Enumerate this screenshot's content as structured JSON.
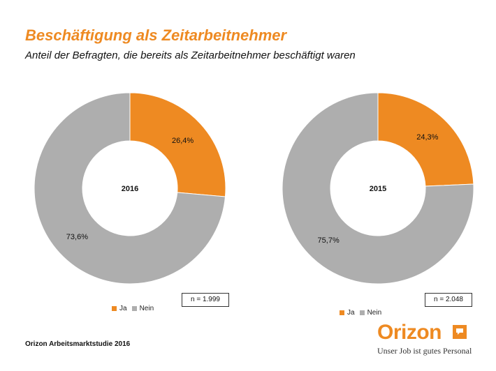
{
  "header": {
    "title": "Beschäftigung als Zeitarbeitnehmer",
    "subtitle": "Anteil der Befragten, die bereits als Zeitarbeitnehmer beschäftigt waren"
  },
  "chart_data": [
    {
      "type": "pie",
      "donut": true,
      "center_label": "2016",
      "categories": [
        "Ja",
        "Nein"
      ],
      "values": [
        26.4,
        73.6
      ],
      "value_labels": [
        "26,4%",
        "73,6%"
      ],
      "colors": [
        "#EE8A22",
        "#AEAEAE"
      ],
      "sample_size": "n = 1.999",
      "legend": [
        "Ja",
        "Nein"
      ],
      "legend_position": "bottom-left"
    },
    {
      "type": "pie",
      "donut": true,
      "center_label": "2015",
      "categories": [
        "Ja",
        "Nein"
      ],
      "values": [
        24.3,
        75.7
      ],
      "value_labels": [
        "24,3%",
        "75,7%"
      ],
      "colors": [
        "#EE8A22",
        "#AEAEAE"
      ],
      "sample_size": "n = 2.048",
      "legend": [
        "Ja",
        "Nein"
      ],
      "legend_position": "bottom-left"
    }
  ],
  "footer": {
    "source": "Orizon Arbeitsmarktstudie 2016"
  },
  "logo": {
    "brand": "Orizon",
    "slogan": "Unser Job ist gutes Personal",
    "color": "#EE8A22"
  }
}
